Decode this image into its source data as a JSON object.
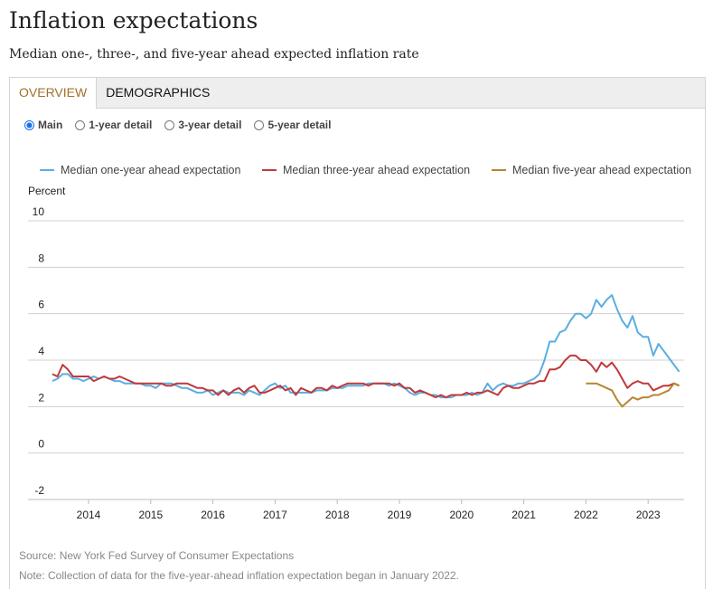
{
  "title": "Inflation expectations",
  "subtitle": "Median one-, three-, and five-year ahead expected inflation rate",
  "tabs": [
    {
      "label": "OVERVIEW",
      "active": true
    },
    {
      "label": "DEMOGRAPHICS",
      "active": false
    }
  ],
  "radios": [
    {
      "label": "Main",
      "checked": true
    },
    {
      "label": "1-year detail",
      "checked": false
    },
    {
      "label": "3-year detail",
      "checked": false
    },
    {
      "label": "5-year detail",
      "checked": false
    }
  ],
  "source": "Source: New York Fed Survey of Consumer Expectations",
  "note": "Note: Collection of data for the five-year-ahead inflation expectation began in January 2022.",
  "chart_data": {
    "type": "line",
    "ylabel": "Percent",
    "ylim": [
      -2,
      10
    ],
    "yticks": [
      "10",
      "8",
      "6",
      "4",
      "2",
      "0",
      "-2"
    ],
    "xticks": [
      "2014",
      "2015",
      "2016",
      "2017",
      "2018",
      "2019",
      "2020",
      "2021",
      "2022",
      "2023"
    ],
    "x_start": "2013-06",
    "frequency": "monthly",
    "series": [
      {
        "name": "Median one-year ahead expectation",
        "color": "#5aaee0",
        "start": "2013-06",
        "values": [
          3.1,
          3.2,
          3.4,
          3.4,
          3.2,
          3.2,
          3.1,
          3.2,
          3.3,
          3.2,
          3.3,
          3.2,
          3.1,
          3.1,
          3.0,
          3.0,
          3.0,
          3.0,
          2.9,
          2.9,
          2.8,
          3.0,
          3.0,
          3.0,
          2.9,
          2.8,
          2.8,
          2.7,
          2.6,
          2.6,
          2.7,
          2.5,
          2.6,
          2.7,
          2.6,
          2.6,
          2.6,
          2.5,
          2.7,
          2.6,
          2.5,
          2.7,
          2.9,
          3.0,
          2.8,
          2.9,
          2.6,
          2.6,
          2.6,
          2.6,
          2.6,
          2.7,
          2.7,
          2.7,
          2.8,
          2.8,
          2.8,
          2.9,
          2.9,
          2.9,
          2.9,
          3.0,
          3.0,
          3.0,
          3.0,
          2.9,
          3.0,
          2.9,
          2.8,
          2.6,
          2.5,
          2.6,
          2.6,
          2.5,
          2.5,
          2.4,
          2.4,
          2.4,
          2.5,
          2.5,
          2.5,
          2.6,
          2.5,
          2.6,
          3.0,
          2.7,
          2.9,
          3.0,
          2.9,
          2.9,
          3.0,
          3.0,
          3.1,
          3.2,
          3.4,
          4.0,
          4.8,
          4.8,
          5.2,
          5.3,
          5.7,
          6.0,
          6.0,
          5.8,
          6.0,
          6.6,
          6.3,
          6.6,
          6.8,
          6.2,
          5.7,
          5.4,
          5.9,
          5.2,
          5.0,
          5.0,
          4.2,
          4.7,
          4.4,
          4.1,
          3.8,
          3.5
        ]
      },
      {
        "name": "Median three-year ahead expectation",
        "color": "#c0393b",
        "start": "2013-06",
        "values": [
          3.4,
          3.3,
          3.8,
          3.6,
          3.3,
          3.3,
          3.3,
          3.3,
          3.1,
          3.2,
          3.3,
          3.2,
          3.2,
          3.3,
          3.2,
          3.1,
          3.0,
          3.0,
          3.0,
          3.0,
          3.0,
          3.0,
          2.9,
          2.9,
          3.0,
          3.0,
          3.0,
          2.9,
          2.8,
          2.8,
          2.7,
          2.7,
          2.5,
          2.7,
          2.5,
          2.7,
          2.8,
          2.6,
          2.8,
          2.9,
          2.6,
          2.6,
          2.7,
          2.8,
          2.9,
          2.7,
          2.8,
          2.5,
          2.8,
          2.7,
          2.6,
          2.8,
          2.8,
          2.7,
          2.9,
          2.8,
          2.9,
          3.0,
          3.0,
          3.0,
          3.0,
          2.9,
          3.0,
          3.0,
          3.0,
          3.0,
          2.9,
          3.0,
          2.8,
          2.8,
          2.6,
          2.7,
          2.6,
          2.5,
          2.4,
          2.5,
          2.4,
          2.5,
          2.5,
          2.5,
          2.6,
          2.5,
          2.6,
          2.6,
          2.7,
          2.6,
          2.5,
          2.8,
          2.9,
          2.8,
          2.8,
          2.9,
          3.0,
          3.0,
          3.1,
          3.1,
          3.6,
          3.6,
          3.7,
          4.0,
          4.2,
          4.2,
          4.0,
          4.0,
          3.8,
          3.5,
          3.9,
          3.7,
          3.9,
          3.6,
          3.2,
          2.8,
          3.0,
          3.1,
          3.0,
          3.0,
          2.7,
          2.8,
          2.9,
          2.9,
          3.0,
          2.9
        ]
      },
      {
        "name": "Median five-year ahead expectation",
        "color": "#b8862e",
        "start": "2022-01",
        "values": [
          3.0,
          3.0,
          3.0,
          2.9,
          2.8,
          2.7,
          2.3,
          2.0,
          2.2,
          2.4,
          2.3,
          2.4,
          2.4,
          2.5,
          2.5,
          2.6,
          2.7,
          3.0,
          2.9
        ]
      }
    ]
  }
}
